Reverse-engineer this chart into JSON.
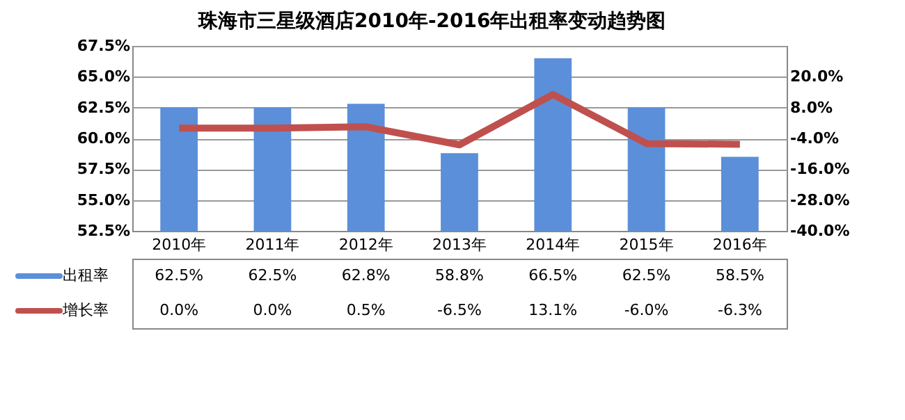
{
  "chart_data": {
    "type": "bar",
    "title": "珠海市三星级酒店2010年-2016年出租率变动趋势图",
    "categories": [
      "2010年",
      "2011年",
      "2012年",
      "2013年",
      "2014年",
      "2015年",
      "2016年"
    ],
    "series": [
      {
        "name": "出租率",
        "color": "#5b8fd9",
        "values": [
          62.5,
          62.5,
          62.8,
          58.8,
          66.5,
          62.5,
          58.5
        ],
        "value_labels": [
          "62.5%",
          "62.5%",
          "62.8%",
          "58.8%",
          "66.5%",
          "62.5%",
          "58.5%"
        ]
      },
      {
        "name": "增长率",
        "type": "line",
        "axis": "y2",
        "color": "#c0504d",
        "values": [
          0.0,
          0.0,
          0.5,
          -6.5,
          13.1,
          -6.0,
          -6.3
        ],
        "value_labels": [
          "0.0%",
          "0.0%",
          "0.5%",
          "-6.5%",
          "13.1%",
          "-6.0%",
          "-6.3%"
        ]
      }
    ],
    "ylim": [
      52.5,
      67.5
    ],
    "yticks": [
      {
        "value": 52.5,
        "label": "52.5%"
      },
      {
        "value": 55,
        "label": "55.0%"
      },
      {
        "value": 57.5,
        "label": "57.5%"
      },
      {
        "value": 60,
        "label": "60.0%"
      },
      {
        "value": 62.5,
        "label": "62.5%"
      },
      {
        "value": 65,
        "label": "65.0%"
      },
      {
        "value": 67.5,
        "label": "67.5%"
      }
    ],
    "y2lim": [
      -40,
      32
    ],
    "y2ticks": [
      {
        "value": -40,
        "label": "-40.0%"
      },
      {
        "value": -28,
        "label": "-28.0%"
      },
      {
        "value": -16,
        "label": "-16.0%"
      },
      {
        "value": -4,
        "label": "-4.0%"
      },
      {
        "value": 8,
        "label": "8.0%"
      },
      {
        "value": 20,
        "label": "20.0%"
      }
    ],
    "grid": "y",
    "legend": "bottom left",
    "line_style": "solid",
    "marker": "none"
  }
}
